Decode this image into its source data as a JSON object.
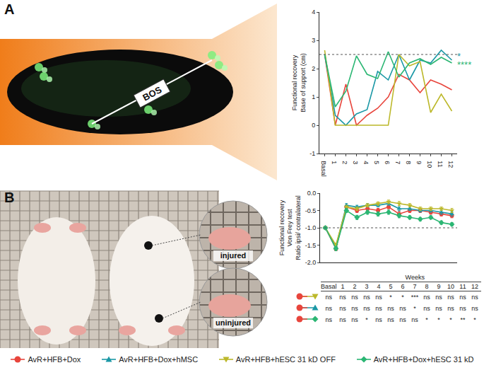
{
  "figure": {
    "panel_labels": [
      "A",
      "B"
    ],
    "photo_a": {
      "label": "BOS"
    },
    "photo_b": {
      "insets": [
        "injured",
        "uninjured"
      ]
    }
  },
  "chart_data": [
    {
      "type": "line",
      "ylabel": "Functional recovery\nBase of support (cm)",
      "categories": [
        "Basal",
        "1",
        "2",
        "3",
        "4",
        "5",
        "6",
        "7",
        "8",
        "9",
        "10",
        "11",
        "12"
      ],
      "ylim": [
        -1,
        4
      ],
      "yticks": [
        -1,
        0,
        1,
        2,
        3,
        4
      ],
      "reference_line": 2.5,
      "grid": false,
      "series": [
        {
          "name": "AvR+HFB+Dox",
          "color": "#e8453c",
          "values": [
            2.5,
            0,
            1.45,
            0,
            0.35,
            0.6,
            1.0,
            1.8,
            1.6,
            1.15,
            1.6,
            1.45,
            1.25
          ]
        },
        {
          "name": "AvR+HFB+Dox+hMSC",
          "color": "#1b98a6",
          "values": [
            2.5,
            0.35,
            0,
            0.4,
            0.55,
            1.9,
            1.6,
            2.5,
            1.6,
            2.3,
            2.2,
            2.65,
            2.3
          ]
        },
        {
          "name": "AvR+HFB+hESC 31 kD OFF",
          "color": "#bcb82a",
          "values": [
            2.65,
            0,
            0,
            0,
            0,
            0,
            0,
            2.5,
            2.1,
            2.25,
            0.45,
            1.1,
            0.5
          ]
        },
        {
          "name": "AvR+HFB+Dox+hESC 31 kD",
          "color": "#2bb673",
          "values": [
            2.5,
            0.65,
            1.2,
            2.45,
            1.8,
            1.65,
            2.6,
            1.7,
            2.2,
            2.35,
            2.15,
            2.4,
            2.2
          ]
        }
      ],
      "annotations": [
        {
          "text": "*",
          "category": "12",
          "y": 2.45,
          "color": "#1b98a6"
        },
        {
          "text": "****",
          "category": "12",
          "y": 2.15,
          "color": "#2bb673"
        }
      ]
    },
    {
      "type": "line",
      "ylabel": "Functional recovery\nVon Frey test\nRatio ipsi/ contralateral",
      "categories": [
        "Basal",
        "1",
        "2",
        "3",
        "4",
        "5",
        "6",
        "7",
        "8",
        "9",
        "10",
        "11",
        "12"
      ],
      "ylim": [
        -2,
        0
      ],
      "yticks": [
        {
          "value": -2,
          "label": "-2.0"
        },
        {
          "value": -1.5,
          "label": "-1.5"
        },
        {
          "value": -1,
          "label": "-1.0"
        },
        {
          "value": -0.5,
          "label": "-0.5"
        },
        {
          "value": 0,
          "label": "0.0"
        }
      ],
      "reference_line": -1,
      "grid": false,
      "tick_labels": "y",
      "series": [
        {
          "name": "AvR+HFB+Dox",
          "color": "#e8453c",
          "marker": "circle",
          "values": [
            -1.0,
            -1.6,
            -0.4,
            -0.5,
            -0.45,
            -0.5,
            -0.4,
            -0.6,
            -0.5,
            -0.5,
            -0.55,
            -0.6,
            -0.65
          ],
          "errors": [
            0.03,
            0.06,
            0.05,
            0.06,
            0.05,
            0.06,
            0.05,
            0.08,
            0.06,
            0.06,
            0.06,
            0.06,
            0.06
          ]
        },
        {
          "name": "AvR+HFB+Dox+hMSC",
          "color": "#1b98a6",
          "marker": "triangle-up",
          "values": [
            -1.0,
            -1.55,
            -0.35,
            -0.4,
            -0.35,
            -0.35,
            -0.3,
            -0.45,
            -0.45,
            -0.5,
            -0.5,
            -0.55,
            -0.6
          ],
          "errors": [
            0.03,
            0.06,
            0.05,
            0.05,
            0.05,
            0.05,
            0.05,
            0.06,
            0.05,
            0.05,
            0.05,
            0.06,
            0.06
          ]
        },
        {
          "name": "AvR+HFB+hESC 31 kD OFF",
          "color": "#bcb82a",
          "marker": "triangle-down",
          "values": [
            -1.0,
            -1.5,
            -0.4,
            -0.45,
            -0.35,
            -0.3,
            -0.25,
            -0.3,
            -0.35,
            -0.45,
            -0.45,
            -0.45,
            -0.5
          ],
          "errors": [
            0.03,
            0.06,
            0.05,
            0.05,
            0.05,
            0.05,
            0.05,
            0.06,
            0.05,
            0.05,
            0.05,
            0.05,
            0.06
          ]
        },
        {
          "name": "AvR+HFB+Dox+hESC 31 kD",
          "color": "#2bb673",
          "marker": "diamond",
          "values": [
            -1.0,
            -1.6,
            -0.5,
            -0.7,
            -0.55,
            -0.6,
            -0.55,
            -0.65,
            -0.7,
            -0.75,
            -0.7,
            -0.85,
            -0.9
          ],
          "errors": [
            0.03,
            0.06,
            0.06,
            0.06,
            0.06,
            0.06,
            0.06,
            0.06,
            0.05,
            0.05,
            0.05,
            0.05,
            0.05
          ]
        }
      ]
    }
  ],
  "significance_table": {
    "header_title": "Weeks",
    "rows": [
      {
        "pair": [
          "AvR+HFB+Dox",
          "AvR+HFB+hESC 31 kD OFF"
        ],
        "values": [
          "ns",
          "ns",
          "ns",
          "ns",
          "ns",
          "*",
          "*",
          "***",
          "ns",
          "ns",
          "ns",
          "ns",
          "ns"
        ]
      },
      {
        "pair": [
          "AvR+HFB+Dox",
          "AvR+HFB+Dox+hMSC"
        ],
        "values": [
          "ns",
          "ns",
          "ns",
          "ns",
          "ns",
          "ns",
          "ns",
          "*",
          "ns",
          "ns",
          "ns",
          "ns",
          "ns"
        ]
      },
      {
        "pair": [
          "AvR+HFB+Dox",
          "AvR+HFB+Dox+hESC 31 kD"
        ],
        "values": [
          "ns",
          "ns",
          "ns",
          "*",
          "ns",
          "ns",
          "ns",
          "ns",
          "*",
          "*",
          "*",
          "**",
          "*"
        ]
      }
    ]
  }
}
